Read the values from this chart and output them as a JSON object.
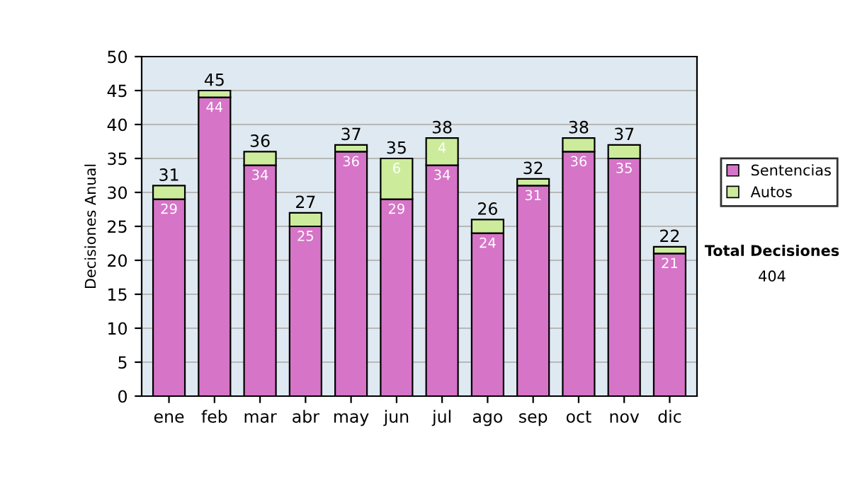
{
  "chart_data": {
    "type": "bar",
    "stacked": true,
    "ylabel": "Decisiones Anual",
    "categories": [
      "ene",
      "feb",
      "mar",
      "abr",
      "may",
      "jun",
      "jul",
      "ago",
      "sep",
      "oct",
      "nov",
      "dic"
    ],
    "series": [
      {
        "name": "Sentencias",
        "color": "#d674c8",
        "values": [
          29,
          44,
          34,
          25,
          36,
          29,
          34,
          24,
          31,
          36,
          35,
          21
        ],
        "value_labels": [
          "29",
          "44",
          "34",
          "25",
          "36",
          "29",
          "34",
          "24",
          "31",
          "36",
          "35",
          "21"
        ]
      },
      {
        "name": "Autos",
        "color": "#ccec9c",
        "values": [
          2,
          1,
          2,
          2,
          1,
          6,
          4,
          2,
          1,
          2,
          2,
          1
        ],
        "value_labels": [
          null,
          null,
          null,
          null,
          null,
          "6",
          "4",
          null,
          null,
          null,
          null,
          null
        ]
      }
    ],
    "totals": [
      "31",
      "45",
      "36",
      "27",
      "37",
      "35",
      "38",
      "26",
      "32",
      "38",
      "37",
      "22"
    ],
    "ylim": [
      0,
      50
    ],
    "yticks": [
      0,
      5,
      10,
      15,
      20,
      25,
      30,
      35,
      40,
      45,
      50
    ],
    "grid": "y",
    "legend": "right",
    "annotations": [
      "Total Decisiones",
      "404"
    ]
  }
}
